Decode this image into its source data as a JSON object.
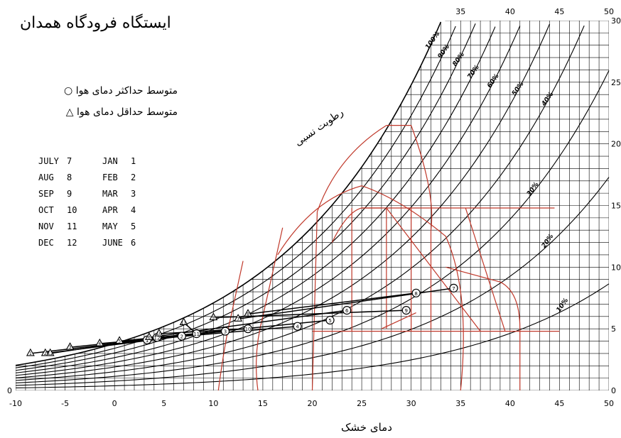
{
  "title": "ایستگاه فرودگاه همدان",
  "legend": {
    "max_label": "متوسط حداکثر دمای هوا",
    "max_symbol": "○",
    "min_label": "متوسط حداقل دمای هوا",
    "min_symbol": "△"
  },
  "months_left": [
    {
      "name": "JULY",
      "num": "7"
    },
    {
      "name": "AUG",
      "num": "8"
    },
    {
      "name": "SEP",
      "num": "9"
    },
    {
      "name": "OCT",
      "num": "10"
    },
    {
      "name": "NOV",
      "num": "11"
    },
    {
      "name": "DEC",
      "num": "12"
    }
  ],
  "months_right": [
    {
      "name": "JAN",
      "num": "1"
    },
    {
      "name": "FEB",
      "num": "2"
    },
    {
      "name": "MAR",
      "num": "3"
    },
    {
      "name": "APR",
      "num": "4"
    },
    {
      "name": "MAY",
      "num": "5"
    },
    {
      "name": "JUNE",
      "num": "6"
    }
  ],
  "xlabel": "دمای خشک",
  "rh_label": "رطوبت نسبی",
  "colors": {
    "grid": "#000000",
    "comfort": "#c0392b",
    "data": "#000000"
  },
  "chart_data": {
    "type": "scatter",
    "title": "ایستگاه فرودگاه همدان",
    "xlabel": "دمای خشک",
    "xlim": [
      -10,
      50
    ],
    "ylim": [
      0,
      30
    ],
    "x_ticks": [
      -10,
      -5,
      0,
      5,
      10,
      15,
      20,
      25,
      30,
      35,
      40,
      45,
      50
    ],
    "y_ticks": [
      0,
      5,
      10,
      15,
      20,
      25,
      30
    ],
    "top_ticks": [
      35,
      40,
      45,
      50
    ],
    "rh_curves": [
      {
        "label": "100%",
        "rh": 1.0
      },
      {
        "label": "90%",
        "rh": 0.9
      },
      {
        "label": "80%",
        "rh": 0.8
      },
      {
        "label": "70%",
        "rh": 0.7
      },
      {
        "label": "60%",
        "rh": 0.6
      },
      {
        "label": "50%",
        "rh": 0.5
      },
      {
        "label": "40%",
        "rh": 0.4
      },
      {
        "label": "30%",
        "rh": 0.3
      },
      {
        "label": "20%",
        "rh": 0.2
      },
      {
        "label": "10%",
        "rh": 0.1
      }
    ],
    "series": [
      {
        "name": "متوسط حداکثر دمای هوا",
        "marker": "circle",
        "months": [
          "1",
          "2",
          "3",
          "4",
          "5",
          "6",
          "7",
          "8",
          "9",
          "10",
          "11",
          "12"
        ],
        "x": [
          3.3,
          6.8,
          11.2,
          18.5,
          21.8,
          23.5,
          34.3,
          30.5,
          29.5,
          13.5,
          8.3,
          4.3
        ],
        "y": [
          4.1,
          4.4,
          4.8,
          5.2,
          5.7,
          6.5,
          8.3,
          7.9,
          6.5,
          5.0,
          4.6,
          4.3
        ]
      },
      {
        "name": "متوسط حداقل دمای هوا",
        "marker": "triangle",
        "months": [
          "1",
          "2",
          "3",
          "4",
          "5",
          "6",
          "7",
          "8",
          "9",
          "10",
          "11",
          "12"
        ],
        "x": [
          -8.5,
          -7.0,
          -4.5,
          -1.5,
          0.5,
          3.5,
          12.5,
          13.5,
          10.0,
          4.5,
          7.0,
          -6.5
        ],
        "y": [
          3.0,
          3.0,
          3.5,
          3.8,
          4.0,
          4.3,
          5.8,
          6.2,
          5.9,
          4.6,
          5.5,
          3.0
        ]
      }
    ]
  }
}
